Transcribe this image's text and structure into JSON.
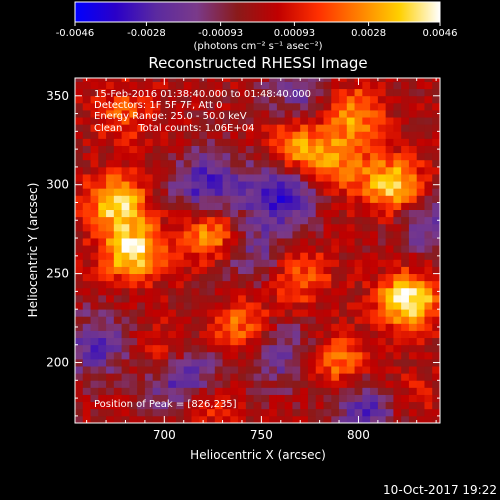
{
  "colorbar": {
    "ticks": [
      "-0.0046",
      "-0.0028",
      "-0.00093",
      "0.00093",
      "0.0028",
      "0.0046"
    ],
    "unit_label": "(photons cm⁻² s⁻¹ asec⁻²)",
    "range": [
      -0.0046,
      0.0046
    ]
  },
  "colors": {
    "background": "#000000",
    "text": "#ffffff",
    "colormap": [
      "#0000ff",
      "#2a00c8",
      "#5b2aa0",
      "#7a3a8a",
      "#8a1a1a",
      "#c00000",
      "#ff3000",
      "#ff8000",
      "#ffd000",
      "#ffffff"
    ]
  },
  "chart_data": {
    "type": "heatmap",
    "title": "Reconstructed RHESSI Image",
    "xlabel": "Heliocentric X (arcsec)",
    "ylabel": "Heliocentric Y (arcsec)",
    "xlim": [
      654,
      842
    ],
    "ylim": [
      166,
      360
    ],
    "xticks": [
      700,
      750,
      800
    ],
    "yticks": [
      200,
      250,
      300,
      350
    ],
    "grid": false,
    "annotations": {
      "time": "15-Feb-2016 01:38:40.000 to 01:48:40.000",
      "detectors": "Detectors: 1F 5F 7F, Att 0",
      "energy": "Energy Range: 25.0 - 50.0 keV",
      "method": "Clean     Total counts: 1.06E+04",
      "peak": "Position of Peak = [826,235]"
    },
    "peak": [
      826,
      235
    ],
    "sources": [
      {
        "x": 676,
        "y": 290,
        "value": 0.004
      },
      {
        "x": 684,
        "y": 262,
        "value": 0.0042
      },
      {
        "x": 724,
        "y": 272,
        "value": 0.0032
      },
      {
        "x": 768,
        "y": 322,
        "value": 0.0034
      },
      {
        "x": 796,
        "y": 340,
        "value": 0.003
      },
      {
        "x": 790,
        "y": 312,
        "value": 0.0022
      },
      {
        "x": 826,
        "y": 235,
        "value": 0.0046
      },
      {
        "x": 818,
        "y": 300,
        "value": 0.0038
      },
      {
        "x": 770,
        "y": 248,
        "value": 0.0022
      },
      {
        "x": 740,
        "y": 220,
        "value": 0.0024
      },
      {
        "x": 790,
        "y": 200,
        "value": 0.0026
      },
      {
        "x": 700,
        "y": 205,
        "value": 0.0018
      },
      {
        "x": 720,
        "y": 178,
        "value": 0.0022
      },
      {
        "x": 680,
        "y": 340,
        "value": 0.0018
      },
      {
        "x": 822,
        "y": 180,
        "value": 0.0016
      }
    ],
    "minima": [
      {
        "x": 722,
        "y": 300,
        "value": -0.003
      },
      {
        "x": 760,
        "y": 295,
        "value": -0.0034
      },
      {
        "x": 745,
        "y": 262,
        "value": -0.002
      },
      {
        "x": 710,
        "y": 190,
        "value": -0.0036
      },
      {
        "x": 760,
        "y": 205,
        "value": -0.0022
      },
      {
        "x": 806,
        "y": 175,
        "value": -0.003
      },
      {
        "x": 770,
        "y": 348,
        "value": -0.002
      },
      {
        "x": 665,
        "y": 210,
        "value": -0.0024
      },
      {
        "x": 836,
        "y": 278,
        "value": -0.002
      }
    ]
  },
  "footer": {
    "timestamp": "10-Oct-2017 19:22"
  }
}
